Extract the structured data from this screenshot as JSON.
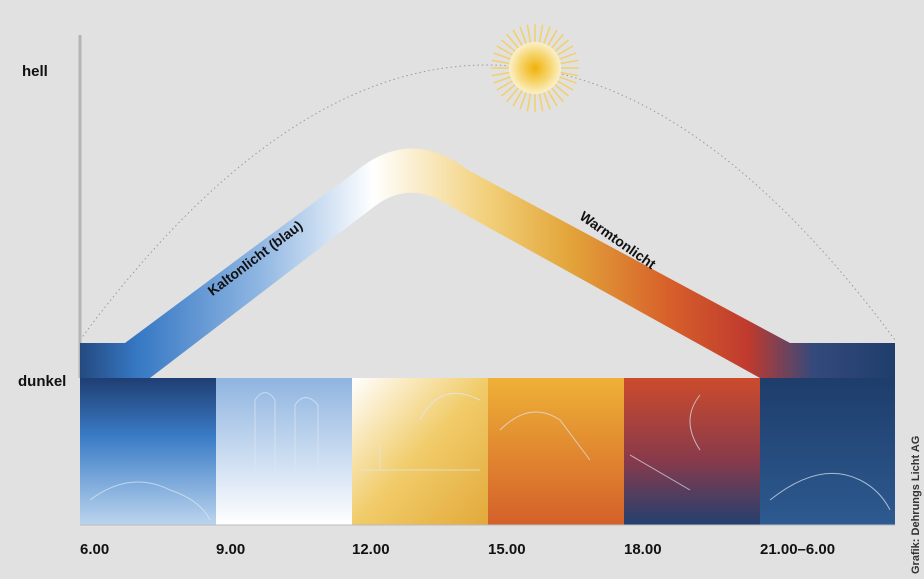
{
  "axis": {
    "top": "hell",
    "bottom": "dunkel"
  },
  "curve": {
    "cold": "Kaltonlicht (blau)",
    "warm": "Warmtonlicht"
  },
  "times": [
    "6.00",
    "9.00",
    "12.00",
    "15.00",
    "18.00",
    "21.00–6.00"
  ],
  "credit": "Grafik: Dehrungs Licht AG"
}
